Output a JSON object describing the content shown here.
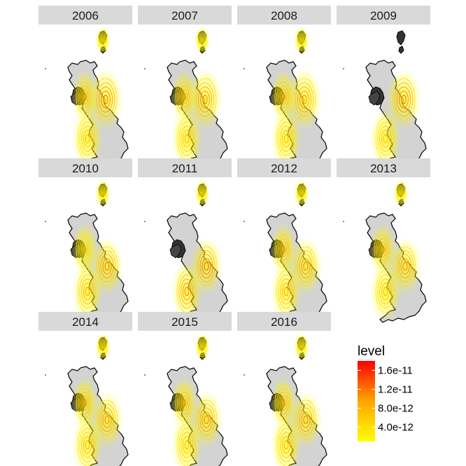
{
  "chart_data": {
    "type": "heatmap",
    "description_kind": "faceted 2D density contour maps over a land outline",
    "facets": [
      {
        "label": "2006",
        "hotspots": [
          {
            "region": "north-east",
            "level": 1.5e-11
          },
          {
            "region": "west-coast",
            "level": 1e-11
          },
          {
            "region": "south-west",
            "level": 8e-12
          },
          {
            "region": "far-north",
            "level": 4e-12
          }
        ]
      },
      {
        "label": "2007",
        "hotspots": [
          {
            "region": "north-east",
            "level": 1.3e-11
          },
          {
            "region": "west-coast",
            "level": 1e-11
          },
          {
            "region": "south-west",
            "level": 8e-12
          },
          {
            "region": "far-north",
            "level": 4e-12
          }
        ]
      },
      {
        "label": "2008",
        "hotspots": [
          {
            "region": "north-east",
            "level": 1.2e-11
          },
          {
            "region": "west-coast",
            "level": 1e-11
          },
          {
            "region": "south-west",
            "level": 8e-12
          },
          {
            "region": "far-north",
            "level": 4e-12
          }
        ]
      },
      {
        "label": "2009",
        "hotspots": [
          {
            "region": "north-east",
            "level": 1.5e-11
          },
          {
            "region": "south-west",
            "level": 8e-12
          }
        ]
      },
      {
        "label": "2010",
        "hotspots": [
          {
            "region": "east",
            "level": 1.4e-11
          },
          {
            "region": "west-coast",
            "level": 6e-12
          },
          {
            "region": "south-west",
            "level": 1e-11
          },
          {
            "region": "far-north",
            "level": 4e-12
          }
        ]
      },
      {
        "label": "2011",
        "hotspots": [
          {
            "region": "east",
            "level": 1.6e-11
          },
          {
            "region": "south-west",
            "level": 1.3e-11
          },
          {
            "region": "far-north",
            "level": 4e-12
          }
        ]
      },
      {
        "label": "2012",
        "hotspots": [
          {
            "region": "east",
            "level": 1.2e-11
          },
          {
            "region": "west-coast",
            "level": 1e-11
          },
          {
            "region": "south-west",
            "level": 1e-11
          },
          {
            "region": "far-north",
            "level": 4e-12
          }
        ]
      },
      {
        "label": "2013",
        "hotspots": [
          {
            "region": "east",
            "level": 1.2e-11
          },
          {
            "region": "west-coast",
            "level": 1e-11
          },
          {
            "region": "south-west",
            "level": 8e-12
          },
          {
            "region": "far-north",
            "level": 4e-12
          }
        ]
      },
      {
        "label": "2014",
        "hotspots": [
          {
            "region": "east",
            "level": 1.2e-11
          },
          {
            "region": "west-coast",
            "level": 1e-11
          },
          {
            "region": "south-west",
            "level": 9e-12
          },
          {
            "region": "far-north",
            "level": 4e-12
          }
        ]
      },
      {
        "label": "2015",
        "hotspots": [
          {
            "region": "east",
            "level": 1.3e-11
          },
          {
            "region": "west-coast",
            "level": 1e-11
          },
          {
            "region": "south-west",
            "level": 8e-12
          },
          {
            "region": "far-north",
            "level": 4e-12
          }
        ]
      },
      {
        "label": "2016",
        "hotspots": [
          {
            "region": "east",
            "level": 1.3e-11
          },
          {
            "region": "west-coast",
            "level": 1e-11
          },
          {
            "region": "south-west",
            "level": 9e-12
          },
          {
            "region": "far-north",
            "level": 4e-12
          }
        ]
      }
    ],
    "legend": {
      "title": "level",
      "ticks": [
        "1.6e-11",
        "1.2e-11",
        "8.0e-12",
        "4.0e-12"
      ],
      "tick_values": [
        1.6e-11,
        1.2e-11,
        8e-12,
        4e-12
      ],
      "range": [
        1e-12,
        1.8e-11
      ],
      "low_color": "#ffff00",
      "high_color": "#ff0000",
      "placement": "bottom-right"
    },
    "colors": {
      "land": "#d3d3d3",
      "coast": "#000000",
      "strip": "#d9d9d9",
      "background": "#ffffff"
    }
  }
}
